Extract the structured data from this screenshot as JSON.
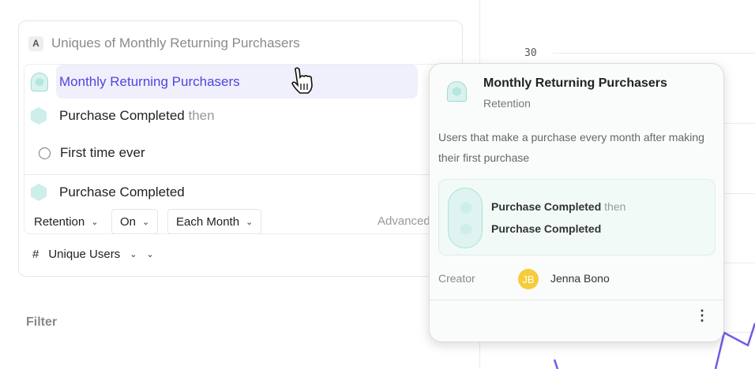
{
  "chart_bg": {
    "y_tick_label": "30",
    "line_color": "#6e5ce6"
  },
  "query": {
    "badge": "A",
    "title": "Uniques of Monthly Returning Purchasers",
    "cohort_name": "Monthly Returning Purchasers",
    "first_event": "Purchase Completed",
    "then_label": "then",
    "first_time": "First time ever",
    "second_event": "Purchase Completed",
    "controls": {
      "retention": "Retention",
      "on": "On",
      "each_month": "Each Month",
      "advanced": "Advanced"
    },
    "measure_symbol": "#",
    "measure": "Unique Users"
  },
  "filter_label": "Filter",
  "popover": {
    "title": "Monthly Returning Purchasers",
    "type": "Retention",
    "description": "Users that make a purchase every month after making their first purchase",
    "step1": "Purchase Completed",
    "step1_suffix": "then",
    "step2": "Purchase Completed",
    "creator_label": "Creator",
    "creator_initials": "JB",
    "creator_name": "Jenna Bono",
    "accent": "#4f44e0"
  }
}
